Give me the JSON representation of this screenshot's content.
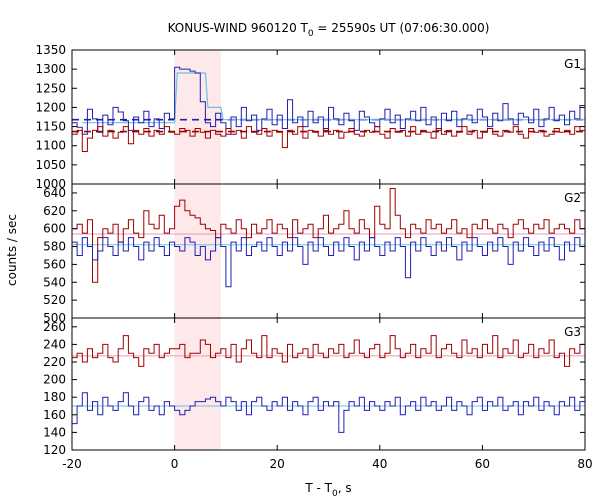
{
  "chart_data": {
    "type": "line",
    "title_parts": {
      "prefix": "KONUS-WIND 960120 T",
      "subscript": "0",
      "suffix": " = 25590s UT (07:06:30.000)"
    },
    "title": "KONUS-WIND 960120 T0 = 25590s UT (07:06:30.000)",
    "xlabel_parts": {
      "prefix": "T - T",
      "subscript": "0",
      "suffix": ", s"
    },
    "xlabel": "T - T0, s",
    "ylabel": "counts / sec",
    "xlim": [
      -20,
      80
    ],
    "x_ticks": [
      -20,
      0,
      20,
      40,
      60,
      80
    ],
    "highlight_interval": [
      0,
      9
    ],
    "colors": {
      "red": "#a00000",
      "blue": "#2020b0",
      "light_blue": "#6fc0e8",
      "pink": "#e89ab8",
      "highlight": "#fde8ea"
    },
    "panels": [
      {
        "name": "G1",
        "ylim": [
          1000,
          1350
        ],
        "y_ticks": [
          1000,
          1050,
          1100,
          1150,
          1200,
          1250,
          1300,
          1350
        ],
        "x_start": -20,
        "bin": 1,
        "background_fits": {
          "blue": 1168,
          "red": 1137
        },
        "fit_style": "dashed",
        "burst_model": {
          "x": [
            -18,
            0,
            0.5,
            6,
            6.5,
            9,
            9.5,
            80
          ],
          "y": [
            1160,
            1160,
            1290,
            1290,
            1200,
            1200,
            1168,
            1168
          ]
        },
        "series": [
          {
            "color_key": "blue",
            "values": [
              1160,
              1148,
              1130,
              1195,
              1170,
              1135,
              1180,
              1155,
              1200,
              1188,
              1165,
              1140,
              1175,
              1160,
              1190,
              1150,
              1170,
              1145,
              1185,
              1170,
              1305,
              1300,
              1300,
              1295,
              1290,
              1215,
              1160,
              1150,
              1185,
              1160,
              1130,
              1175,
              1150,
              1200,
              1165,
              1180,
              1140,
              1170,
              1195,
              1155,
              1180,
              1145,
              1220,
              1160,
              1175,
              1150,
              1190,
              1160,
              1175,
              1140,
              1200,
              1170,
              1155,
              1185,
              1165,
              1140,
              1190,
              1175,
              1160,
              1150,
              1170,
              1195,
              1160,
              1180,
              1145,
              1170,
              1190,
              1165,
              1200,
              1155,
              1175,
              1140,
              1185,
              1165,
              1190,
              1150,
              1170,
              1180,
              1160,
              1195,
              1175,
              1150,
              1185,
              1165,
              1210,
              1170,
              1155,
              1185,
              1175,
              1160,
              1195,
              1150,
              1170,
              1200,
              1165,
              1180,
              1155,
              1190,
              1170,
              1205
            ]
          },
          {
            "color_key": "red",
            "values": [
              1130,
              1140,
              1085,
              1120,
              1140,
              1150,
              1125,
              1140,
              1120,
              1135,
              1150,
              1105,
              1140,
              1130,
              1145,
              1125,
              1140,
              1130,
              1150,
              1135,
              1130,
              1145,
              1140,
              1125,
              1145,
              1135,
              1120,
              1140,
              1130,
              1125,
              1145,
              1130,
              1140,
              1120,
              1150,
              1135,
              1130,
              1145,
              1125,
              1140,
              1135,
              1095,
              1140,
              1130,
              1150,
              1120,
              1140,
              1135,
              1125,
              1145,
              1130,
              1140,
              1120,
              1135,
              1145,
              1130,
              1125,
              1140,
              1135,
              1150,
              1130,
              1120,
              1145,
              1135,
              1140,
              1125,
              1150,
              1130,
              1140,
              1135,
              1120,
              1145,
              1130,
              1140,
              1125,
              1135,
              1150,
              1130,
              1140,
              1120,
              1135,
              1145,
              1130,
              1125,
              1140,
              1135,
              1150,
              1130,
              1120,
              1145,
              1135,
              1140,
              1125,
              1130,
              1145,
              1135,
              1140,
              1130,
              1150,
              1140
            ]
          }
        ]
      },
      {
        "name": "G2",
        "ylim": [
          500,
          650
        ],
        "y_ticks": [
          500,
          520,
          540,
          560,
          580,
          600,
          620,
          640
        ],
        "x_start": -20,
        "bin": 1,
        "background_fits": {
          "red": 594,
          "blue": 582
        },
        "fit_style": "solid",
        "series": [
          {
            "color_key": "red",
            "values": [
              600,
              605,
              595,
              610,
              540,
              590,
              600,
              595,
              605,
              585,
              600,
              610,
              595,
              590,
              620,
              605,
              600,
              615,
              595,
              600,
              625,
              632,
              620,
              615,
              612,
              605,
              600,
              598,
              590,
              605,
              600,
              595,
              610,
              600,
              590,
              605,
              595,
              600,
              610,
              595,
              605,
              600,
              590,
              610,
              595,
              600,
              605,
              590,
              600,
              615,
              595,
              600,
              605,
              620,
              600,
              595,
              610,
              600,
              590,
              625,
              605,
              600,
              645,
              615,
              600,
              590,
              605,
              600,
              595,
              610,
              600,
              605,
              595,
              600,
              610,
              595,
              600,
              590,
              605,
              600,
              610,
              600,
              595,
              605,
              600,
              590,
              605,
              610,
              600,
              595,
              605,
              600,
              610,
              595,
              600,
              605,
              600,
              595,
              610,
              600
            ]
          },
          {
            "color_key": "blue",
            "values": [
              585,
              570,
              590,
              580,
              565,
              575,
              590,
              580,
              570,
              585,
              575,
              590,
              580,
              565,
              585,
              575,
              590,
              580,
              570,
              585,
              580,
              575,
              590,
              585,
              570,
              580,
              565,
              575,
              590,
              580,
              535,
              585,
              575,
              590,
              570,
              580,
              585,
              575,
              590,
              580,
              570,
              585,
              575,
              590,
              580,
              560,
              585,
              575,
              590,
              580,
              570,
              585,
              575,
              590,
              580,
              565,
              585,
              575,
              590,
              580,
              570,
              585,
              575,
              590,
              580,
              545,
              585,
              575,
              590,
              580,
              570,
              585,
              575,
              590,
              580,
              565,
              585,
              575,
              590,
              580,
              570,
              585,
              575,
              590,
              580,
              560,
              585,
              575,
              590,
              580,
              570,
              585,
              575,
              590,
              580,
              565,
              585,
              575,
              590,
              580
            ]
          }
        ]
      },
      {
        "name": "G3",
        "ylim": [
          120,
          270
        ],
        "y_ticks": [
          120,
          140,
          160,
          180,
          200,
          220,
          240,
          260
        ],
        "x_start": -20,
        "bin": 1,
        "background_fits": {
          "red": 227,
          "blue": 170
        },
        "fit_style": "solid",
        "series": [
          {
            "color_key": "red",
            "values": [
              225,
              230,
              220,
              235,
              225,
              230,
              240,
              225,
              220,
              235,
              250,
              230,
              225,
              215,
              235,
              230,
              240,
              225,
              230,
              235,
              235,
              240,
              225,
              230,
              230,
              245,
              240,
              225,
              230,
              235,
              225,
              240,
              220,
              235,
              245,
              230,
              225,
              250,
              225,
              235,
              230,
              220,
              240,
              225,
              230,
              235,
              225,
              240,
              230,
              225,
              235,
              230,
              240,
              225,
              230,
              245,
              230,
              225,
              235,
              240,
              225,
              230,
              250,
              235,
              225,
              230,
              240,
              225,
              235,
              230,
              250,
              225,
              235,
              240,
              230,
              225,
              245,
              230,
              235,
              225,
              240,
              230,
              250,
              225,
              235,
              230,
              245,
              225,
              230,
              240,
              225,
              235,
              230,
              245,
              225,
              230,
              215,
              235,
              230,
              240
            ]
          },
          {
            "color_key": "blue",
            "values": [
              150,
              170,
              185,
              165,
              175,
              160,
              180,
              170,
              165,
              175,
              185,
              170,
              160,
              175,
              180,
              165,
              170,
              160,
              175,
              170,
              165,
              160,
              165,
              170,
              175,
              175,
              178,
              180,
              175,
              170,
              180,
              175,
              165,
              175,
              160,
              175,
              180,
              170,
              165,
              175,
              170,
              180,
              165,
              175,
              170,
              160,
              175,
              180,
              165,
              175,
              170,
              175,
              140,
              165,
              175,
              170,
              180,
              165,
              175,
              170,
              165,
              175,
              170,
              180,
              160,
              170,
              175,
              165,
              180,
              170,
              175,
              165,
              170,
              180,
              165,
              175,
              170,
              160,
              175,
              180,
              165,
              175,
              170,
              180,
              165,
              170,
              175,
              160,
              175,
              170,
              180,
              165,
              175,
              170,
              160,
              175,
              170,
              180,
              165,
              175
            ]
          }
        ]
      }
    ]
  }
}
